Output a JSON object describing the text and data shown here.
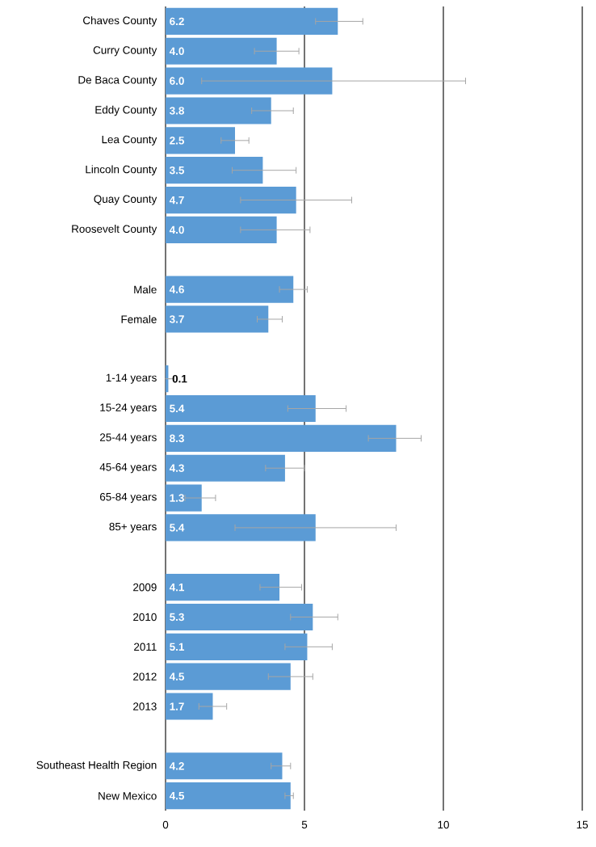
{
  "chart_data": {
    "type": "bar",
    "orientation": "horizontal",
    "color": "#5b9bd5",
    "categories": [
      "Chaves County",
      "Curry County",
      "De Baca County",
      "Eddy County",
      "Lea County",
      "Lincoln County",
      "Quay County",
      "Roosevelt County",
      null,
      "Male",
      "Female",
      null,
      "1-14 years",
      "15-24 years",
      "25-44 years",
      "45-64 years",
      "65-84 years",
      "85+ years",
      null,
      "2009",
      "2010",
      "2011",
      "2012",
      "2013",
      null,
      "Southeast Health Region",
      "New Mexico"
    ],
    "values": [
      6.2,
      4.0,
      6.0,
      3.8,
      2.5,
      3.5,
      4.7,
      4.0,
      null,
      4.6,
      3.7,
      null,
      0.1,
      5.4,
      8.3,
      4.3,
      1.3,
      5.4,
      null,
      4.1,
      5.3,
      5.1,
      4.5,
      1.7,
      null,
      4.2,
      4.5
    ],
    "value_labels": [
      "6.2",
      "4.0",
      "6.0",
      "3.8",
      "2.5",
      "3.5",
      "4.7",
      "4.0",
      null,
      "4.6",
      "3.7",
      null,
      "0.1",
      "5.4",
      "8.3",
      "4.3",
      "1.3",
      "5.4",
      null,
      "4.1",
      "5.3",
      "5.1",
      "4.5",
      "1.7",
      null,
      "4.2",
      "4.5"
    ],
    "errors": [
      [
        5.4,
        7.1
      ],
      [
        3.2,
        4.8
      ],
      [
        1.3,
        10.8
      ],
      [
        3.1,
        4.6
      ],
      [
        2.0,
        3.0
      ],
      [
        2.4,
        4.7
      ],
      [
        2.7,
        6.7
      ],
      [
        2.7,
        5.2
      ],
      null,
      [
        4.1,
        5.1
      ],
      [
        3.3,
        4.2
      ],
      null,
      [
        0.1,
        0.3
      ],
      [
        4.4,
        6.5
      ],
      [
        7.3,
        9.2
      ],
      [
        3.6,
        5.0
      ],
      [
        0.7,
        1.8
      ],
      [
        2.5,
        8.3
      ],
      null,
      [
        3.4,
        4.9
      ],
      [
        4.5,
        6.2
      ],
      [
        4.3,
        6.0
      ],
      [
        3.7,
        5.3
      ],
      [
        1.2,
        2.2
      ],
      null,
      [
        3.8,
        4.5
      ],
      [
        4.3,
        4.6
      ]
    ],
    "xlim": [
      0,
      15
    ],
    "xticks": [
      0,
      5,
      10,
      15
    ],
    "grid": "x"
  }
}
